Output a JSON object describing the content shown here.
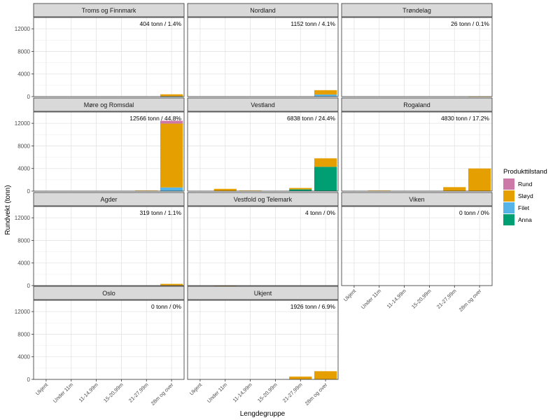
{
  "chart_data": {
    "type": "bar",
    "subtype": "stacked, faceted",
    "xlabel": "Lengdegruppe",
    "ylabel": "Rundvekt (tonn)",
    "ylim": [
      0,
      14000
    ],
    "yticks": [
      0,
      4000,
      8000,
      12000
    ],
    "categories": [
      "Ukjent",
      "Under 11m",
      "11-14,99m",
      "15-20,99m",
      "21-27,99m",
      "28m og over"
    ],
    "legend": {
      "title": "Produkttilstand",
      "position": "right",
      "entries": [
        {
          "name": "Rund",
          "color": "#CC79A7"
        },
        {
          "name": "Sløyd",
          "color": "#E69F00"
        },
        {
          "name": "Filet",
          "color": "#56B4E9"
        },
        {
          "name": "Anna",
          "color": "#009E73"
        }
      ]
    },
    "stack_order": [
      "Anna",
      "Filet",
      "Sløyd",
      "Rund"
    ],
    "panels": [
      {
        "title": "Troms og Finnmark",
        "annotation": "404 tonn / 1.4%",
        "series": {
          "Rund": [
            0,
            0,
            0,
            0,
            0,
            0
          ],
          "Sløyd": [
            0,
            0,
            0,
            0,
            0,
            400
          ],
          "Filet": [
            0,
            0,
            0,
            0,
            0,
            4
          ],
          "Anna": [
            0,
            0,
            0,
            0,
            0,
            0
          ]
        }
      },
      {
        "title": "Nordland",
        "annotation": "1152 tonn / 4.1%",
        "series": {
          "Rund": [
            0,
            0,
            0,
            0,
            0,
            0
          ],
          "Sløyd": [
            0,
            0,
            0,
            0,
            0,
            780
          ],
          "Filet": [
            0,
            0,
            0,
            0,
            0,
            360
          ],
          "Anna": [
            0,
            0,
            0,
            0,
            0,
            0
          ]
        }
      },
      {
        "title": "Trøndelag",
        "annotation": "26 tonn / 0.1%",
        "series": {
          "Rund": [
            0,
            0,
            0,
            0,
            0,
            0
          ],
          "Sløyd": [
            0,
            0,
            0,
            0,
            0,
            26
          ],
          "Filet": [
            0,
            0,
            0,
            0,
            0,
            0
          ],
          "Anna": [
            0,
            0,
            0,
            0,
            0,
            0
          ]
        }
      },
      {
        "title": "Møre og Romsdal",
        "annotation": "12566 tonn / 44.8%",
        "series": {
          "Rund": [
            0,
            0,
            0,
            0,
            0,
            500
          ],
          "Sløyd": [
            0,
            0,
            0,
            0,
            100,
            11300
          ],
          "Filet": [
            0,
            0,
            0,
            0,
            0,
            600
          ],
          "Anna": [
            0,
            0,
            0,
            0,
            0,
            50
          ]
        }
      },
      {
        "title": "Vestland",
        "annotation": "6838 tonn / 24.4%",
        "series": {
          "Rund": [
            0,
            0,
            0,
            0,
            0,
            0
          ],
          "Sløyd": [
            0,
            400,
            100,
            0,
            250,
            1500
          ],
          "Filet": [
            0,
            0,
            0,
            0,
            0,
            0
          ],
          "Anna": [
            0,
            0,
            0,
            0,
            300,
            4300
          ]
        }
      },
      {
        "title": "Rogaland",
        "annotation": "4830 tonn / 17.2%",
        "series": {
          "Rund": [
            0,
            0,
            0,
            0,
            0,
            0
          ],
          "Sløyd": [
            0,
            100,
            0,
            0,
            700,
            4000
          ],
          "Filet": [
            0,
            0,
            0,
            0,
            0,
            0
          ],
          "Anna": [
            0,
            0,
            0,
            0,
            0,
            0
          ]
        }
      },
      {
        "title": "Agder",
        "annotation": "319 tonn / 1.1%",
        "series": {
          "Rund": [
            0,
            0,
            0,
            0,
            0,
            0
          ],
          "Sløyd": [
            0,
            0,
            0,
            0,
            0,
            300
          ],
          "Filet": [
            0,
            0,
            0,
            0,
            0,
            0
          ],
          "Anna": [
            0,
            0,
            0,
            0,
            0,
            0
          ]
        }
      },
      {
        "title": "Vestfold og Telemark",
        "annotation": "4 tonn / 0%",
        "series": {
          "Rund": [
            0,
            0,
            0,
            0,
            0,
            0
          ],
          "Sløyd": [
            0,
            4,
            0,
            0,
            0,
            0
          ],
          "Filet": [
            0,
            0,
            0,
            0,
            0,
            0
          ],
          "Anna": [
            0,
            0,
            0,
            0,
            0,
            0
          ]
        }
      },
      {
        "title": "Viken",
        "annotation": "0 tonn / 0%",
        "series": {
          "Rund": [
            0,
            0,
            0,
            0,
            0,
            0
          ],
          "Sløyd": [
            0,
            0,
            0,
            0,
            0,
            0
          ],
          "Filet": [
            0,
            0,
            0,
            0,
            0,
            0
          ],
          "Anna": [
            0,
            0,
            0,
            0,
            0,
            0
          ]
        }
      },
      {
        "title": "Oslo",
        "annotation": "0 tonn / 0%",
        "series": {
          "Rund": [
            0,
            0,
            0,
            0,
            0,
            0
          ],
          "Sløyd": [
            0,
            0,
            0,
            0,
            0,
            0
          ],
          "Filet": [
            0,
            0,
            0,
            0,
            0,
            0
          ],
          "Anna": [
            0,
            0,
            0,
            0,
            0,
            0
          ]
        }
      },
      {
        "title": "Ukjent",
        "annotation": "1926 tonn / 6.9%",
        "series": {
          "Rund": [
            0,
            0,
            0,
            0,
            0,
            0
          ],
          "Sløyd": [
            0,
            0,
            0,
            0,
            500,
            1450
          ],
          "Filet": [
            0,
            0,
            0,
            0,
            0,
            0
          ],
          "Anna": [
            0,
            0,
            0,
            0,
            0,
            0
          ]
        }
      }
    ]
  }
}
